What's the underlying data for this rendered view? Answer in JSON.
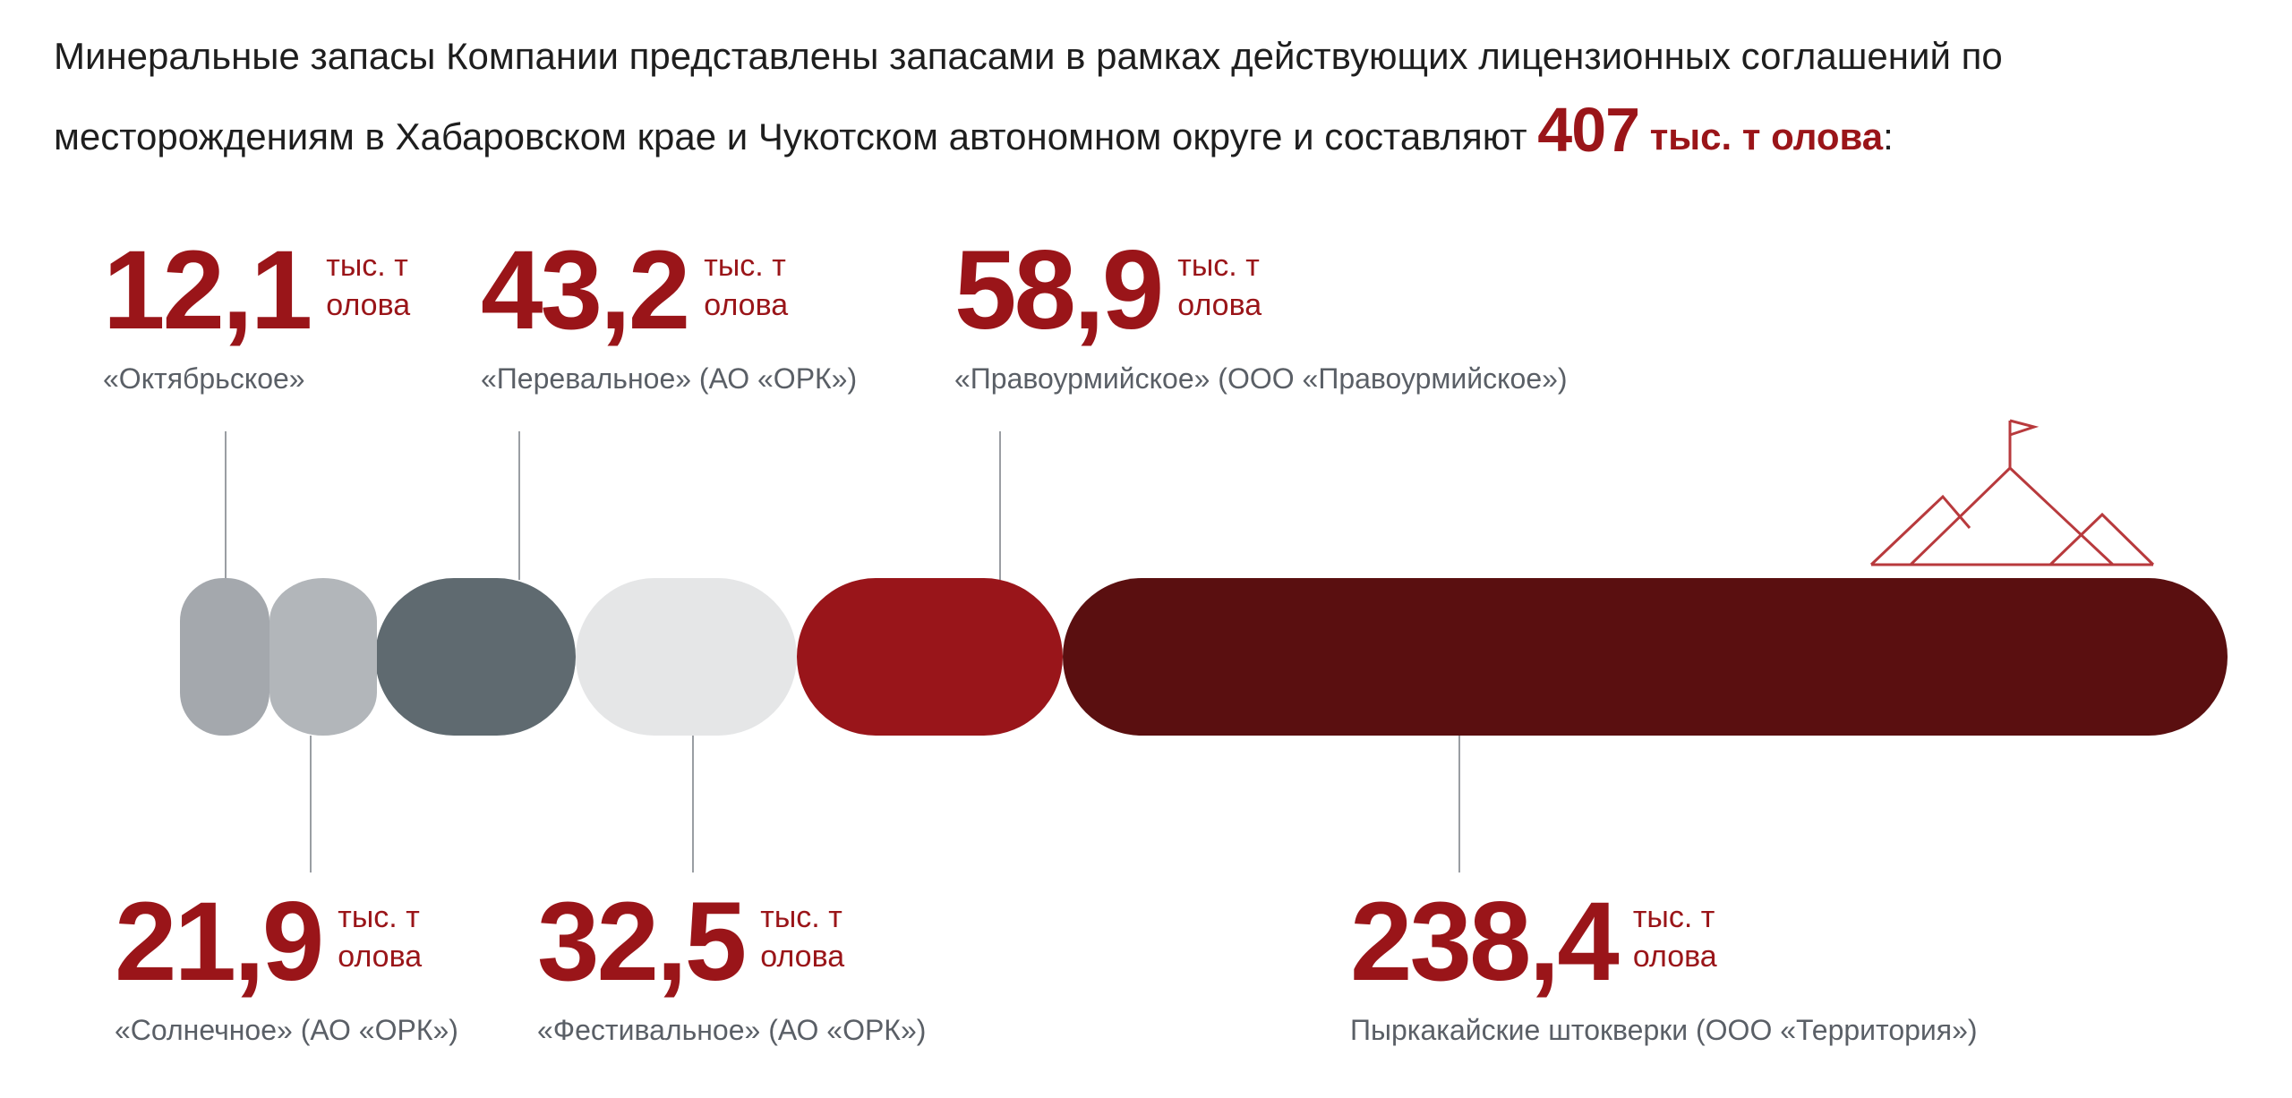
{
  "intro": {
    "line1": "Минеральные запасы Компании представлены запасами в рамках действующих лицензионных соглашений по",
    "line2_before": "месторождениям в Хабаровском крае и Чукотском автономном округе и составляют ",
    "total_value": "407",
    "total_unit": " тыс. т олова",
    "line2_after": ":"
  },
  "chart_data": {
    "type": "bar",
    "title": "",
    "total": 407,
    "unit": "тыс. т олова",
    "categories": [
      "«Октябрьское»",
      "«Солнечное» (АО «ОРК»)",
      "«Перевальное» (АО «ОРК»)",
      "«Фестивальное» (АО «ОРК»)",
      "«Правоурмийское» (ООО «Правоурмийское»)",
      "Пыркакайские штокверки (ООО «Территория»)"
    ],
    "values": [
      12.1,
      21.9,
      43.2,
      32.5,
      58.9,
      238.4
    ],
    "value_labels": [
      "12,1",
      "21,9",
      "43,2",
      "32,5",
      "58,9",
      "238,4"
    ],
    "unit_label": "тыс. т олова",
    "colors": [
      "#a4a8ad",
      "#b2b6ba",
      "#5f6a70",
      "#e5e6e7",
      "#99151a",
      "#5a0f10"
    ],
    "label_position": [
      "top",
      "bottom",
      "top",
      "bottom",
      "top",
      "bottom"
    ]
  }
}
